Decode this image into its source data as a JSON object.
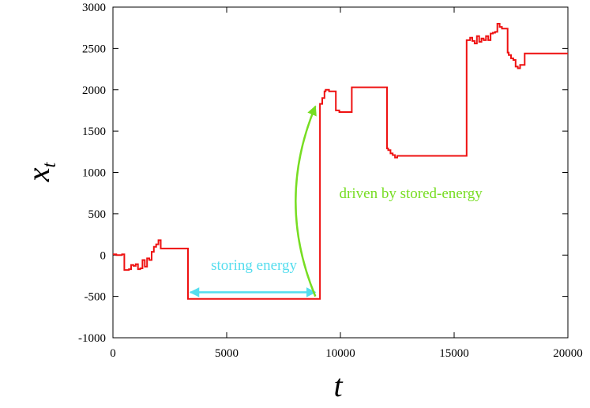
{
  "chart_data": {
    "type": "line",
    "xlabel": "t",
    "ylabel_main": "x",
    "ylabel_sub": "t",
    "xlim": [
      0,
      20000
    ],
    "ylim": [
      -1000,
      3000
    ],
    "xticks": [
      0,
      5000,
      10000,
      15000,
      20000
    ],
    "yticks": [
      -1000,
      -500,
      0,
      500,
      1000,
      1500,
      2000,
      2500,
      3000
    ],
    "grid": false,
    "series": [
      {
        "color": "#ee1111",
        "step": true,
        "x": [
          0,
          150,
          300,
          400,
          500,
          700,
          800,
          900,
          1000,
          1100,
          1200,
          1300,
          1400,
          1500,
          1600,
          1700,
          1800,
          1900,
          2000,
          2100,
          3300,
          3300,
          9100,
          9100,
          9200,
          9300,
          9350,
          9500,
          9800,
          9800,
          9950,
          10000,
          10500,
          10500,
          12050,
          12050,
          12100,
          12200,
          12300,
          12400,
          12500,
          15550,
          15550,
          15700,
          15800,
          15900,
          16000,
          16100,
          16200,
          16300,
          16400,
          16500,
          16600,
          16700,
          16800,
          16900,
          17000,
          17100,
          17300,
          17350,
          17400,
          17500,
          17600,
          17700,
          17800,
          17900,
          18000,
          18100,
          18200,
          20000
        ],
        "y": [
          10,
          0,
          0,
          10,
          -180,
          -170,
          -120,
          -130,
          -110,
          -170,
          -160,
          -60,
          -140,
          -40,
          -60,
          40,
          100,
          130,
          180,
          80,
          80,
          -530,
          -530,
          1830,
          1900,
          1980,
          2000,
          1980,
          1980,
          1750,
          1730,
          1730,
          1730,
          2030,
          2030,
          1290,
          1270,
          1230,
          1210,
          1180,
          1200,
          1200,
          2600,
          2630,
          2590,
          2560,
          2650,
          2580,
          2620,
          2600,
          2650,
          2600,
          2680,
          2690,
          2700,
          2800,
          2760,
          2740,
          2740,
          2450,
          2420,
          2380,
          2360,
          2280,
          2260,
          2300,
          2300,
          2440,
          2440,
          2440
        ]
      }
    ],
    "annotations": [
      {
        "text": "storing energy",
        "color": "#55ddee",
        "arrow_type": "double-headed horizontal",
        "arrow_x": [
          3300,
          9000
        ],
        "arrow_y": -450,
        "text_x": 6200,
        "text_y": -180
      },
      {
        "text": "driven by stored-energy",
        "color": "#77dd22",
        "arrow_type": "curved",
        "arrow_start": [
          8900,
          -500
        ],
        "arrow_end": [
          8900,
          1800
        ],
        "text_x": 9950,
        "text_y": 690
      }
    ]
  }
}
